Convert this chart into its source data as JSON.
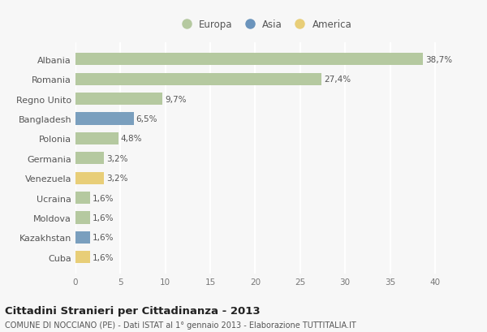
{
  "countries": [
    "Albania",
    "Romania",
    "Regno Unito",
    "Bangladesh",
    "Polonia",
    "Germania",
    "Venezuela",
    "Ucraina",
    "Moldova",
    "Kazakhstan",
    "Cuba"
  ],
  "values": [
    38.7,
    27.4,
    9.7,
    6.5,
    4.8,
    3.2,
    3.2,
    1.6,
    1.6,
    1.6,
    1.6
  ],
  "labels": [
    "38,7%",
    "27,4%",
    "9,7%",
    "6,5%",
    "4,8%",
    "3,2%",
    "3,2%",
    "1,6%",
    "1,6%",
    "1,6%",
    "1,6%"
  ],
  "categories": [
    "Europa",
    "Asia",
    "America"
  ],
  "continent": [
    "Europa",
    "Europa",
    "Europa",
    "Asia",
    "Europa",
    "Europa",
    "America",
    "Europa",
    "Europa",
    "Asia",
    "America"
  ],
  "bar_colors": {
    "Europa": "#b5c9a0",
    "Asia": "#7a9fbe",
    "America": "#e8ce78"
  },
  "legend_colors": {
    "Europa": "#b5c9a0",
    "Asia": "#6b94bc",
    "America": "#e8ce78"
  },
  "bg_color": "#f7f7f7",
  "grid_color": "#ffffff",
  "xlim": [
    0,
    42
  ],
  "xticks": [
    0,
    5,
    10,
    15,
    20,
    25,
    30,
    35,
    40
  ],
  "title": "Cittadini Stranieri per Cittadinanza - 2013",
  "subtitle": "COMUNE DI NOCCIANO (PE) - Dati ISTAT al 1° gennaio 2013 - Elaborazione TUTTITALIA.IT"
}
